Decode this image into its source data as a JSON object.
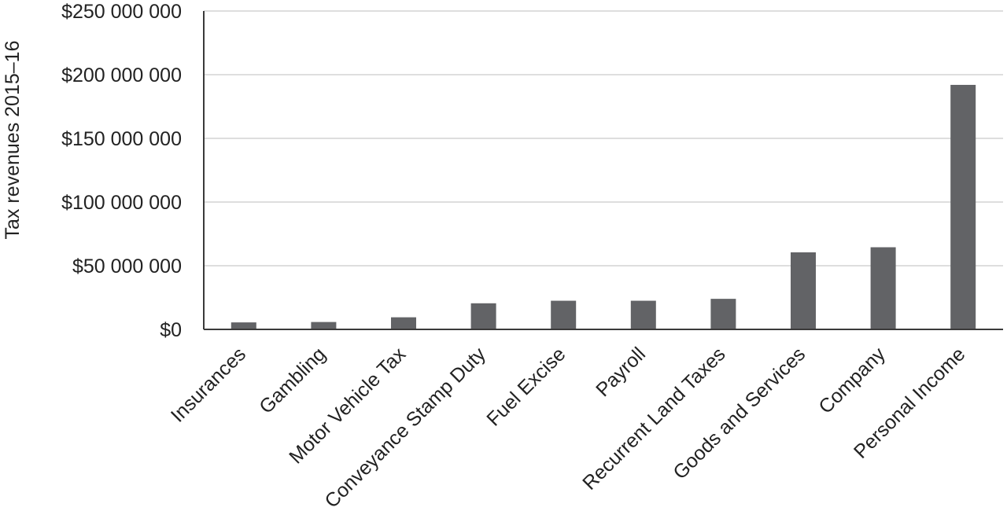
{
  "chart_data": {
    "type": "bar",
    "title": "",
    "xlabel": "",
    "ylabel": "Tax revenues 2015–16",
    "ylim": [
      0,
      250000000
    ],
    "yticks": [
      0,
      50000000,
      100000000,
      150000000,
      200000000,
      250000000
    ],
    "ytick_labels": [
      "$0",
      "$50 000 000",
      "$100 000 000",
      "$150 000 000",
      "$200 000 000",
      "$250 000 000"
    ],
    "grid": true,
    "legend": "none",
    "bar_color": "#626366",
    "categories": [
      "Insurances",
      "Gambling",
      "Motor Vehicle Tax",
      "Conveyance Stamp Duty",
      "Fuel Excise",
      "Payroll",
      "Recurrent Land Taxes",
      "Goods and Services",
      "Company",
      "Personal Income"
    ],
    "values": [
      5500000,
      5800000,
      9500000,
      20500000,
      22500000,
      22500000,
      24000000,
      60500000,
      64500000,
      192000000
    ]
  }
}
